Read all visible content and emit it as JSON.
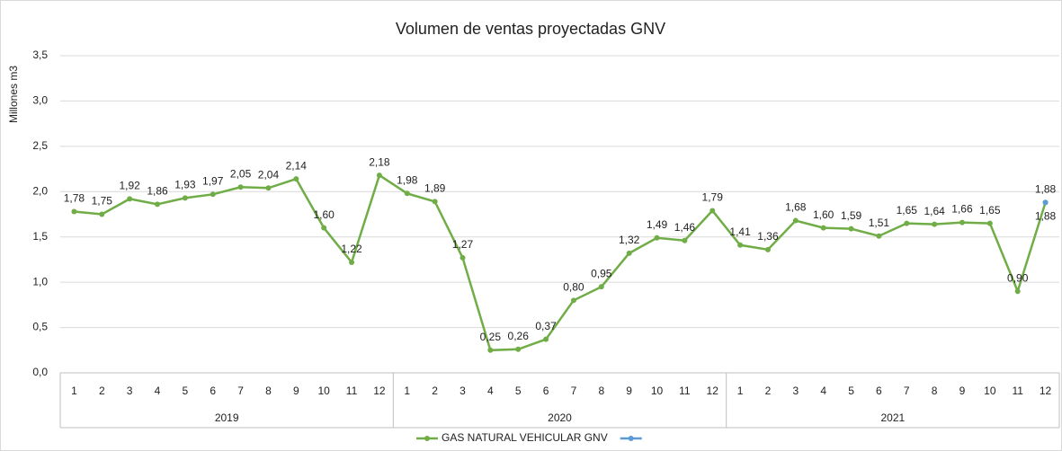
{
  "chart_data": {
    "type": "line",
    "title": "Volumen de ventas proyectadas GNV",
    "y_label": "Millones m3",
    "categories": [
      "1",
      "2",
      "3",
      "4",
      "5",
      "6",
      "7",
      "8",
      "9",
      "10",
      "11",
      "12",
      "1",
      "2",
      "3",
      "4",
      "5",
      "6",
      "7",
      "8",
      "9",
      "10",
      "11",
      "12",
      "1",
      "2",
      "3",
      "4",
      "5",
      "6",
      "7",
      "8",
      "9",
      "10",
      "11",
      "12"
    ],
    "groups": [
      "2019",
      "2020",
      "2021"
    ],
    "series": [
      {
        "name": "GAS NATURAL VEHICULAR GNV",
        "color": "#70ad47",
        "values": [
          1.78,
          1.75,
          1.92,
          1.86,
          1.93,
          1.97,
          2.05,
          2.04,
          2.14,
          1.6,
          1.22,
          2.18,
          1.98,
          1.89,
          1.27,
          0.25,
          0.26,
          0.37,
          0.8,
          0.95,
          1.32,
          1.49,
          1.46,
          1.79,
          1.41,
          1.36,
          1.68,
          1.6,
          1.59,
          1.51,
          1.65,
          1.64,
          1.66,
          1.65,
          0.9,
          1.88
        ],
        "value_labels": [
          "1,78",
          "1,75",
          "1,92",
          "1,86",
          "1,93",
          "1,97",
          "2,05",
          "2,04",
          "2,14",
          "1,60",
          "1,22",
          "2,18",
          "1,98",
          "1,89",
          "1,27",
          "0,25",
          "0,26",
          "0,37",
          "0,80",
          "0,95",
          "1,32",
          "1,49",
          "1,46",
          "1,79",
          "1,41",
          "1,36",
          "1,68",
          "1,60",
          "1,59",
          "1,51",
          "1,65",
          "1,64",
          "1,66",
          "1,65",
          "0,90",
          "1,88"
        ]
      },
      {
        "color": "#5b9bd5",
        "values": [
          null,
          null,
          null,
          null,
          null,
          null,
          null,
          null,
          null,
          null,
          null,
          null,
          null,
          null,
          null,
          null,
          null,
          null,
          null,
          null,
          null,
          null,
          null,
          null,
          null,
          null,
          null,
          null,
          null,
          null,
          null,
          null,
          null,
          null,
          null,
          1.88
        ],
        "value_labels": [
          null,
          null,
          null,
          null,
          null,
          null,
          null,
          null,
          null,
          null,
          null,
          null,
          null,
          null,
          null,
          null,
          null,
          null,
          null,
          null,
          null,
          null,
          null,
          null,
          null,
          null,
          null,
          null,
          null,
          null,
          null,
          null,
          null,
          null,
          null,
          "1,88"
        ]
      }
    ],
    "ylim": [
      0,
      3.5
    ],
    "yticks": [
      {
        "value": 0,
        "label": "0,0"
      },
      {
        "value": 0.5,
        "label": "0,5"
      },
      {
        "value": 1,
        "label": "1,0"
      },
      {
        "value": 1.5,
        "label": "1,5"
      },
      {
        "value": 2,
        "label": "2,0"
      },
      {
        "value": 2.5,
        "label": "2,5"
      },
      {
        "value": 3,
        "label": "3,0"
      },
      {
        "value": 3.5,
        "label": "3,5"
      }
    ],
    "grid": true
  }
}
